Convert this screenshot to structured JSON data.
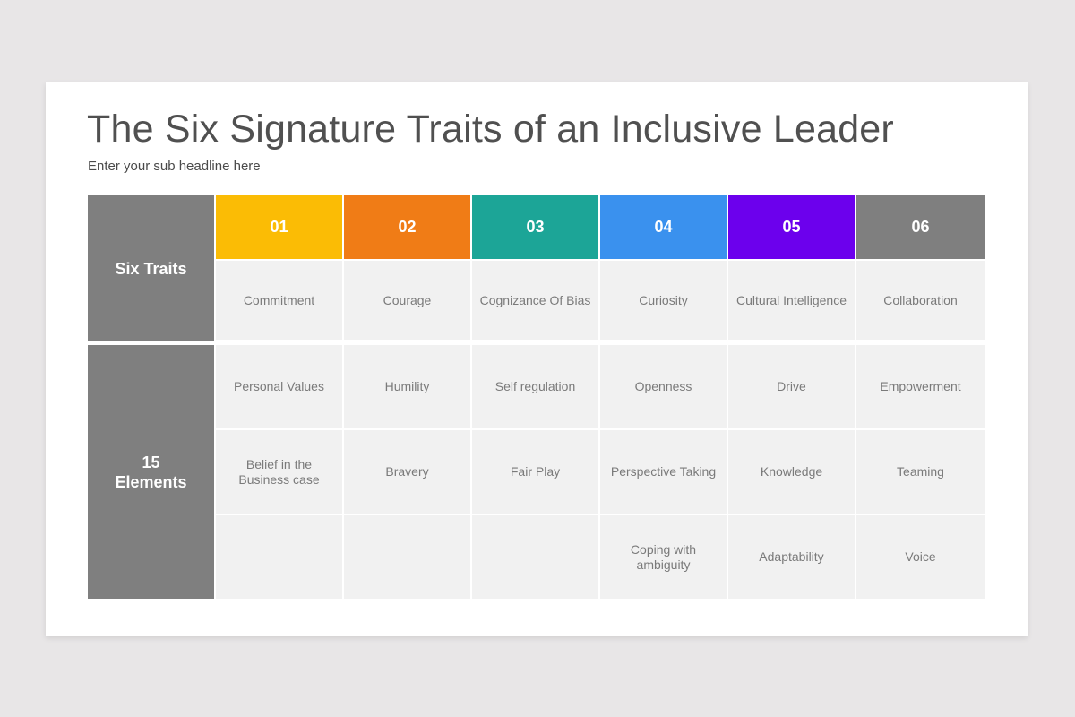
{
  "slide": {
    "title": "The Six Signature Traits of an Inclusive Leader",
    "subtitle": "Enter your sub headline here"
  },
  "table": {
    "row_labels": {
      "traits": "Six Traits",
      "elements_line1": "15",
      "elements_line2": "Elements"
    },
    "columns": [
      {
        "number": "01",
        "color": "#fbbc05",
        "trait": "Commitment",
        "elements": [
          "Personal Values",
          "Belief in the Business case",
          ""
        ]
      },
      {
        "number": "02",
        "color": "#f07c16",
        "trait": "Courage",
        "elements": [
          "Humility",
          "Bravery",
          ""
        ]
      },
      {
        "number": "03",
        "color": "#1ca597",
        "trait": "Cognizance Of Bias",
        "elements": [
          "Self regulation",
          "Fair Play",
          ""
        ]
      },
      {
        "number": "04",
        "color": "#3a91ee",
        "trait": "Curiosity",
        "elements": [
          "Openness",
          "Perspective Taking",
          "Coping with ambiguity"
        ]
      },
      {
        "number": "05",
        "color": "#6c00ed",
        "trait": "Cultural Intelligence",
        "elements": [
          "Drive",
          "Knowledge",
          "Adaptability"
        ]
      },
      {
        "number": "06",
        "color": "#7f7f7f",
        "trait": "Collaboration",
        "elements": [
          "Empowerment",
          "Teaming",
          "Voice"
        ]
      }
    ]
  },
  "colors": {
    "background": "#e8e6e7",
    "slide": "#ffffff",
    "label_column": "#7f7f7f",
    "cell": "#f1f1f1",
    "title_text": "#505050",
    "cell_text": "#7a7a7a"
  }
}
